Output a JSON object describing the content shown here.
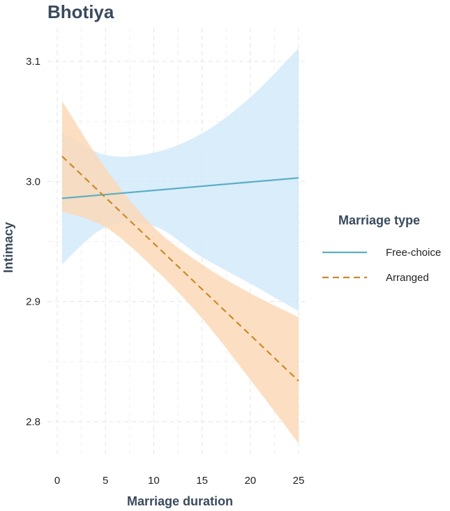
{
  "chart_data": {
    "type": "line",
    "title": "Bhotiya",
    "xlabel": "Marriage duration",
    "ylabel": "Intimacy",
    "xlim": [
      0,
      25
    ],
    "ylim": [
      2.78,
      3.12
    ],
    "x_ticks": [
      0,
      5,
      10,
      15,
      20,
      25
    ],
    "y_ticks": [
      2.8,
      2.9,
      3.0,
      3.1
    ],
    "y_tick_labels": [
      "2.8",
      "2.9",
      "3.0",
      "3.1"
    ],
    "grid": true,
    "legend": {
      "title": "Marriage type",
      "position": "right"
    },
    "series": [
      {
        "name": "Free-choice",
        "color": "#5aaec6",
        "band_color": "#cfe9fa",
        "line_style": "solid",
        "x": [
          0.5,
          25
        ],
        "y": [
          2.986,
          3.003
        ],
        "band_x": [
          0.5,
          5,
          10,
          15,
          20,
          25
        ],
        "band_lower": [
          2.931,
          2.962,
          2.963,
          2.937,
          2.915,
          2.892
        ],
        "band_upper": [
          3.041,
          3.022,
          3.024,
          3.04,
          3.07,
          3.111
        ]
      },
      {
        "name": "Arranged",
        "color": "#c98a2a",
        "band_color": "#fbd7b4",
        "line_style": "dashed",
        "x": [
          0.5,
          25
        ],
        "y": [
          3.021,
          2.834
        ],
        "band_x": [
          0.5,
          5,
          10,
          15,
          20,
          25
        ],
        "band_lower": [
          2.975,
          2.962,
          2.928,
          2.886,
          2.835,
          2.782
        ],
        "band_upper": [
          3.067,
          3.011,
          2.962,
          2.931,
          2.907,
          2.887
        ]
      }
    ]
  }
}
